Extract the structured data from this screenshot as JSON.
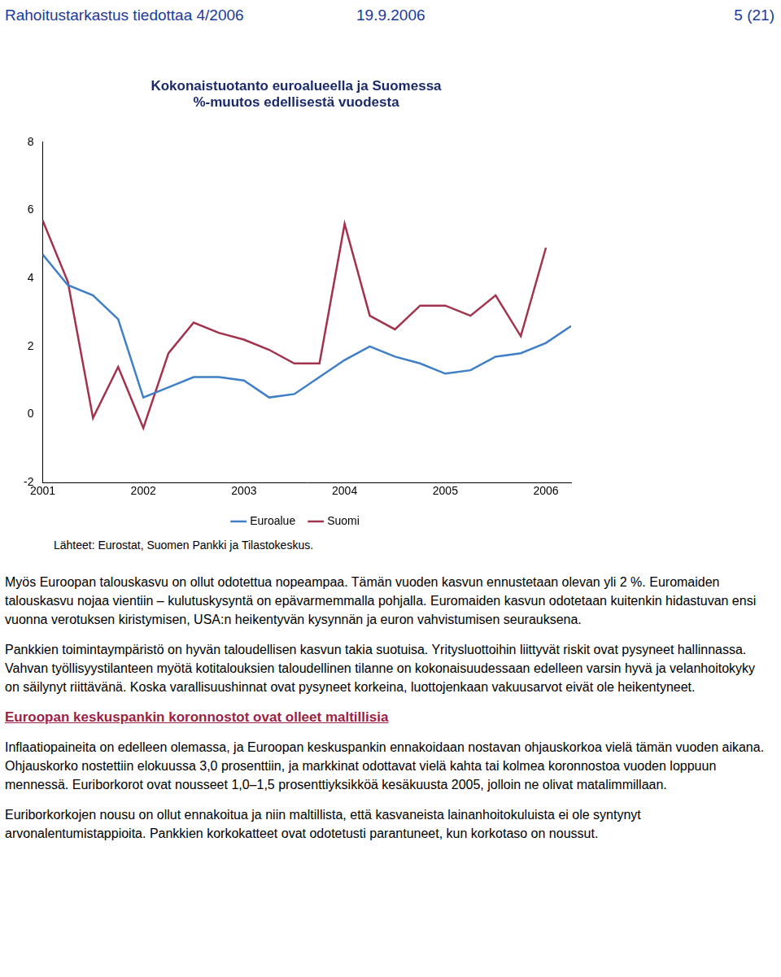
{
  "header": {
    "left": "Rahoitustarkastus tiedottaa 4/2006",
    "center": "19.9.2006",
    "right": "5 (21)"
  },
  "chart_data": {
    "type": "line",
    "title": "Kokonaistuotanto euroalueella ja Suomessa",
    "subtitle": "%-muutos edellisestä vuodesta",
    "source": "Lähteet: Eurostat, Suomen Pankki ja Tilastokeskus.",
    "categories": [
      "2001",
      null,
      null,
      null,
      "2002",
      null,
      null,
      null,
      "2003",
      null,
      null,
      null,
      "2004",
      null,
      null,
      null,
      "2005",
      null,
      null,
      null,
      "2006",
      null
    ],
    "series": [
      {
        "name": "Euroalue",
        "color": "#3f7fc7",
        "values": [
          4.7,
          3.8,
          3.5,
          2.8,
          0.5,
          0.8,
          1.1,
          1.1,
          1.0,
          0.5,
          0.6,
          1.1,
          1.6,
          2.0,
          1.7,
          1.5,
          1.2,
          1.3,
          1.7,
          1.8,
          2.1,
          2.6
        ]
      },
      {
        "name": "Suomi",
        "color": "#a3324c",
        "values": [
          5.7,
          3.9,
          -0.1,
          1.4,
          -0.4,
          1.8,
          2.7,
          2.4,
          2.2,
          1.9,
          1.5,
          1.5,
          5.6,
          2.9,
          2.5,
          3.2,
          3.2,
          2.9,
          3.5,
          2.3,
          4.9,
          null
        ]
      }
    ],
    "ylim": [
      -2,
      8
    ],
    "yticks": [
      -2,
      0,
      2,
      4,
      6,
      8
    ],
    "grid": false,
    "legend": "bottom"
  },
  "blocks": [
    {
      "paragraph": "Myös Euroopan talouskasvu on ollut odotettua nopeampaa. Tämän vuoden kasvun ennustetaan olevan yli 2 %. Euromaiden talouskasvu nojaa vientiin – kulutuskysyntä on epävarmemmalla pohjalla. Euromaiden kasvun odotetaan kuitenkin hidastuvan ensi vuonna verotuksen kiristymisen, USA:n heikentyvän kysynnän ja euron vahvistumisen seurauksena."
    },
    {
      "paragraph": "Pankkien toimintaympäristö on hyvän taloudellisen kasvun takia suotuisa. Yritysluottoihin liittyvät riskit ovat pysyneet hallinnassa. Vahvan työllisyystilanteen myötä kotitalouksien taloudellinen tilanne on kokonaisuudessaan edelleen varsin hyvä ja velanhoitokyky on säilynyt riittävänä. Koska varallisuushinnat ovat pysyneet korkeina, luottojenkaan vakuusarvot eivät ole heikentyneet."
    },
    {
      "heading": "Euroopan keskuspankin koronnostot ovat olleet maltillisia"
    },
    {
      "paragraph": "Inflaatiopaineita on edelleen olemassa, ja Euroopan keskuspankin ennakoidaan nostavan ohjauskorkoa vielä tämän vuoden aikana. Ohjauskorko nostettiin elokuussa 3,0 prosenttiin, ja markkinat odottavat vielä kahta tai kolmea koronnostoa vuoden loppuun mennessä. Euriborkorot ovat nousseet 1,0–1,5 prosenttiyksikköä kesäkuusta 2005, jolloin ne olivat matalimmillaan."
    },
    {
      "paragraph": "Euriborkorkojen nousu on ollut ennakoitua ja niin maltillista, että kasvaneista lainanhoitokuluista ei ole syntynyt arvonalentumistappioita. Pankkien korkokatteet ovat odotetusti parantuneet, kun korkotaso on noussut."
    }
  ]
}
